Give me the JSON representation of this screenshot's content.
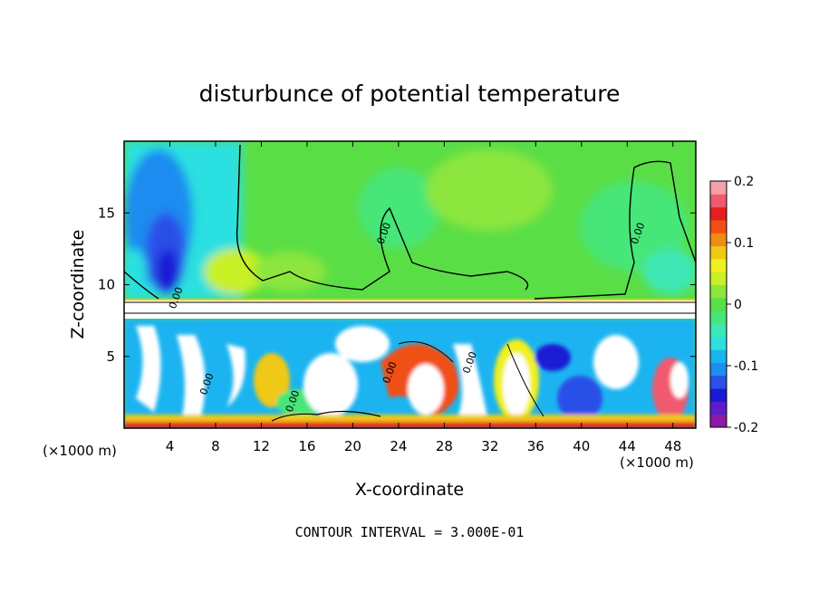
{
  "chart_data": {
    "type": "heatmap",
    "title": "disturbunce of potential temperature",
    "xlabel": "X-coordinate",
    "ylabel": "Z-coordinate",
    "x_unit_left": "(×1000 m)",
    "x_unit_right": "(×1000 m)",
    "footer": "CONTOUR INTERVAL = 3.000E-01",
    "xlim": [
      0,
      50
    ],
    "ylim": [
      0,
      20
    ],
    "x_ticks": [
      4,
      8,
      12,
      16,
      20,
      24,
      28,
      32,
      36,
      40,
      44,
      48
    ],
    "y_ticks": [
      5,
      10,
      15
    ],
    "colorbar": {
      "range": [
        -0.2,
        0.2
      ],
      "ticks": [
        {
          "value": 0.2,
          "label": "0.2"
        },
        {
          "value": 0.1,
          "label": "0.1"
        },
        {
          "value": 0,
          "label": "0"
        },
        {
          "value": -0.1,
          "label": "-0.1"
        },
        {
          "value": -0.2,
          "label": "-0.2"
        }
      ],
      "colors": [
        "#8c1aa6",
        "#5a1fc8",
        "#1a1ad6",
        "#2a50e8",
        "#1f8cf0",
        "#1ab4f0",
        "#2ce0e0",
        "#3ce8b4",
        "#46e678",
        "#5ade46",
        "#8ce63c",
        "#c8f028",
        "#f0f01e",
        "#f0c814",
        "#f08c14",
        "#f05014",
        "#e61e1e",
        "#f05a6e",
        "#f5a0a8"
      ]
    },
    "contour_labels": [
      {
        "x": 4.8,
        "y": 9.0,
        "label": "0.00"
      },
      {
        "x": 23.0,
        "y": 13.5,
        "label": "0.00"
      },
      {
        "x": 45.2,
        "y": 13.5,
        "label": "0.00"
      },
      {
        "x": 7.5,
        "y": 3.0,
        "label": "0.00"
      },
      {
        "x": 15.0,
        "y": 1.8,
        "label": "0.00"
      },
      {
        "x": 23.5,
        "y": 3.8,
        "label": "0.00"
      },
      {
        "x": 30.5,
        "y": 4.5,
        "label": "0.00"
      }
    ]
  }
}
